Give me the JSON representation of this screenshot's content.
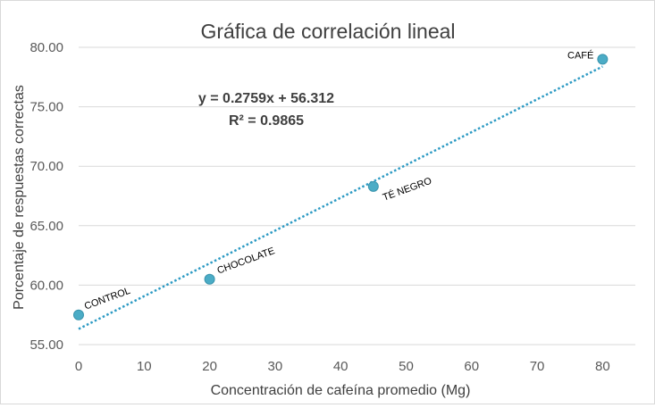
{
  "chart_data": {
    "type": "scatter",
    "title": "Gráfica de correlación lineal",
    "xlabel": "Concentración de cafeína promedio (Mg)",
    "ylabel": "Porcentaje de respuestas correctas",
    "xlim": [
      0,
      85
    ],
    "ylim": [
      55,
      80
    ],
    "x_ticks": [
      "0",
      "10",
      "20",
      "30",
      "40",
      "50",
      "60",
      "70",
      "80"
    ],
    "y_ticks": [
      "55.00",
      "60.00",
      "65.00",
      "70.00",
      "75.00",
      "80.00"
    ],
    "grid": "horizontal",
    "legend": "none",
    "marker_color": "#4bacc6",
    "trendline_color": "#2e9bc4",
    "points": [
      {
        "label": "CONTROL",
        "x": 0,
        "y": 57.5
      },
      {
        "label": "CHOCOLATE",
        "x": 20,
        "y": 60.5
      },
      {
        "label": "TÉ NEGRO",
        "x": 45,
        "y": 68.3
      },
      {
        "label": "CAFÉ",
        "x": 80,
        "y": 79.0
      }
    ],
    "trendline": {
      "type": "linear",
      "slope": 0.2759,
      "intercept": 56.312,
      "equation_text": "y = 0.2759x + 56.312",
      "r2_text": "R² = 0.9865"
    }
  }
}
